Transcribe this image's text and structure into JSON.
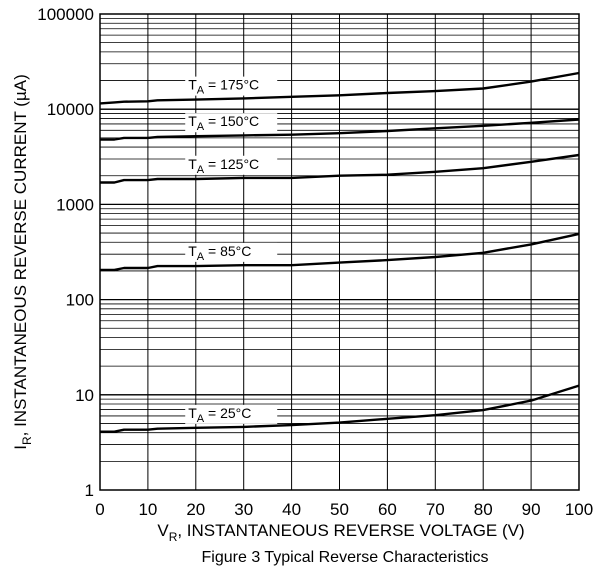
{
  "chart_data": {
    "type": "line",
    "title": "",
    "caption": "Figure 3 Typical Reverse Characteristics",
    "xlabel": {
      "symbol": "V",
      "subscript": "R",
      "text": ", INSTANTANEOUS REVERSE VOLTAGE (V)"
    },
    "ylabel": {
      "symbol": "I",
      "subscript": "R",
      "text": ", INSTANTANEOUS REVERSE CURRENT (µA)"
    },
    "xlim": [
      0,
      100
    ],
    "ylim": [
      1,
      100000
    ],
    "yscale": "log",
    "grid": true,
    "x_ticks": [
      "0",
      "10",
      "20",
      "30",
      "40",
      "50",
      "60",
      "70",
      "80",
      "90",
      "100"
    ],
    "y_ticks": [
      "1",
      "10",
      "100",
      "1000",
      "10000",
      "100000"
    ],
    "series": [
      {
        "name": "T",
        "name_sub": "A",
        "name_suffix": " = 175°C",
        "x": [
          0,
          3,
          5,
          10,
          12,
          20,
          30,
          40,
          50,
          60,
          70,
          80,
          90,
          100
        ],
        "y": [
          11500,
          11800,
          12000,
          12100,
          12400,
          12600,
          13000,
          13500,
          14000,
          14800,
          15500,
          16500,
          19500,
          24000
        ]
      },
      {
        "name": "T",
        "name_sub": "A",
        "name_suffix": " = 150°C",
        "x": [
          0,
          3,
          5,
          10,
          12,
          20,
          30,
          40,
          50,
          60,
          70,
          80,
          90,
          100
        ],
        "y": [
          4800,
          4800,
          5000,
          5000,
          5100,
          5200,
          5300,
          5400,
          5600,
          5900,
          6300,
          6700,
          7200,
          7800
        ]
      },
      {
        "name": "T",
        "name_sub": "A",
        "name_suffix": " = 125°C",
        "x": [
          0,
          3,
          5,
          10,
          12,
          20,
          30,
          40,
          50,
          60,
          70,
          80,
          90,
          100
        ],
        "y": [
          1700,
          1700,
          1800,
          1800,
          1850,
          1850,
          1900,
          1900,
          2000,
          2050,
          2200,
          2400,
          2800,
          3300
        ]
      },
      {
        "name": "T",
        "name_sub": "A",
        "name_suffix": " = 85°C",
        "x": [
          0,
          3,
          5,
          10,
          12,
          20,
          30,
          40,
          50,
          60,
          70,
          80,
          90,
          100
        ],
        "y": [
          205,
          205,
          215,
          215,
          225,
          225,
          230,
          230,
          245,
          260,
          280,
          310,
          380,
          490
        ]
      },
      {
        "name": "T",
        "name_sub": "A",
        "name_suffix": " = 25°C",
        "x": [
          0,
          3,
          5,
          10,
          12,
          20,
          30,
          40,
          50,
          60,
          70,
          80,
          90,
          100
        ],
        "y": [
          4.1,
          4.1,
          4.3,
          4.3,
          4.4,
          4.5,
          4.6,
          4.8,
          5.1,
          5.6,
          6.1,
          6.9,
          8.7,
          12.5
        ]
      }
    ]
  }
}
